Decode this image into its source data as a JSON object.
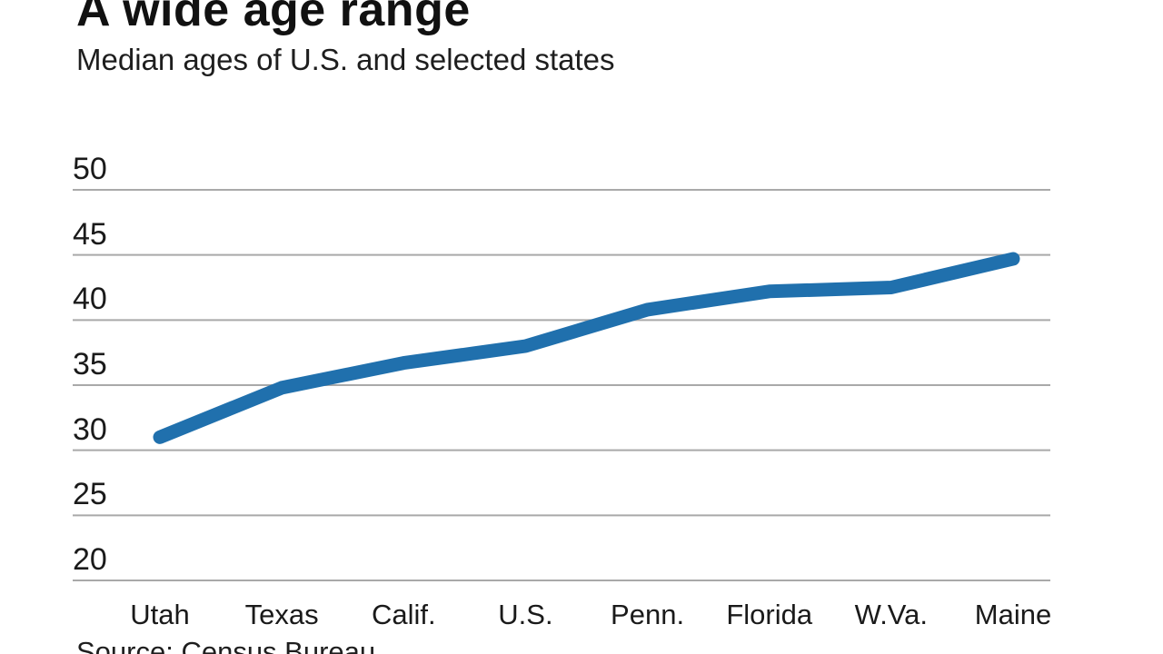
{
  "header": {
    "title": "A wide age range",
    "subtitle": "Median ages of U.S. and selected states"
  },
  "source_note": "Source: Census Bureau",
  "chart_data": {
    "type": "line",
    "title": "A wide age range",
    "subtitle": "Median ages of U.S. and selected states",
    "categories": [
      "Utah",
      "Texas",
      "Calif.",
      "U.S.",
      "Penn.",
      "Florida",
      "W.Va.",
      "Maine"
    ],
    "series": [
      {
        "name": "Median age",
        "values": [
          31.0,
          34.8,
          36.7,
          38.0,
          40.8,
          42.2,
          42.5,
          44.7
        ]
      }
    ],
    "ylim": [
      20,
      50
    ],
    "yticks": [
      50,
      45,
      40,
      35,
      30,
      25,
      20
    ],
    "xlabel": "",
    "ylabel": "",
    "grid": true,
    "legend_position": "none",
    "annotations": [],
    "source": "Source: Census Bureau",
    "colors": {
      "line": "#2070ad",
      "gridline": "#a9a9a9",
      "text": "#1a1a1a"
    }
  }
}
